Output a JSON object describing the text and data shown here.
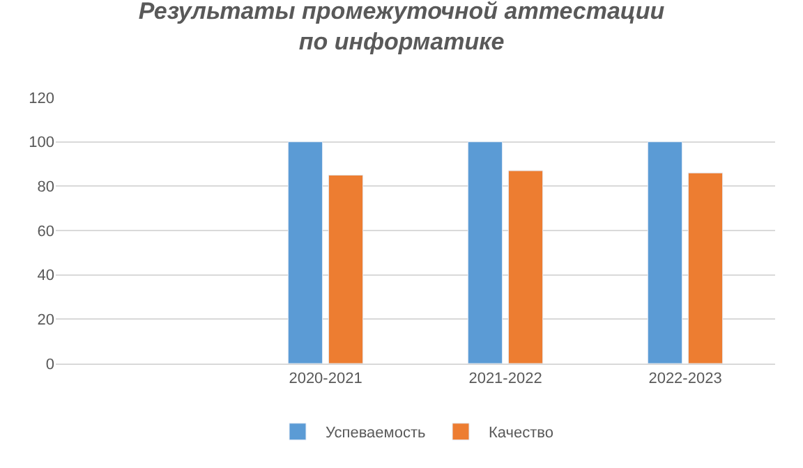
{
  "chart_data": {
    "type": "bar",
    "title": "Результаты промежуточной аттестации по информатике",
    "categories": [
      null,
      "2020-2021",
      "2021-2022",
      "2022-2023"
    ],
    "series": [
      {
        "name": "Успеваемость",
        "color": "#5b9bd5",
        "values": [
          null,
          100,
          100,
          100
        ]
      },
      {
        "name": "Качество",
        "color": "#ed7d31",
        "values": [
          null,
          85,
          87,
          86
        ]
      }
    ],
    "ylim": [
      0,
      120
    ],
    "yticks": [
      0,
      20,
      40,
      60,
      80,
      100,
      120
    ],
    "grid": "y",
    "legend": "bottom"
  }
}
